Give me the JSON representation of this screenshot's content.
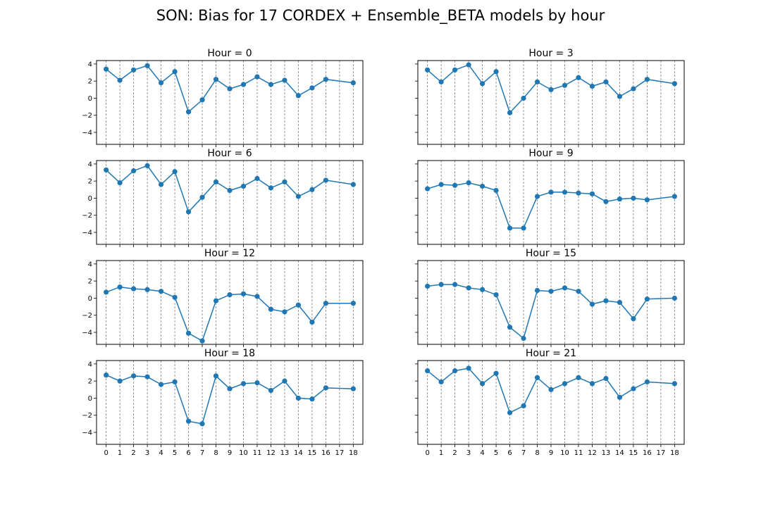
{
  "chart_data": {
    "type": "line",
    "suptitle": "SON: Bias for 17 CORDEX + Ensemble_BETA models by hour",
    "x": [
      0,
      1,
      2,
      3,
      4,
      5,
      6,
      7,
      8,
      9,
      10,
      11,
      12,
      13,
      14,
      15,
      16,
      18
    ],
    "xticks": [
      0,
      1,
      2,
      3,
      4,
      5,
      6,
      7,
      8,
      9,
      10,
      11,
      12,
      13,
      14,
      15,
      16,
      17,
      18
    ],
    "yticks": [
      -4,
      -2,
      0,
      2,
      4
    ],
    "ylim": [
      -5.4,
      4.4
    ],
    "xlim": [
      -0.7,
      18.7
    ],
    "grid": "vertical dashed lines at each x tick",
    "line_color": "#1f77b4",
    "marker": "circle",
    "panels": [
      {
        "title": "Hour = 0",
        "values": [
          3.4,
          2.1,
          3.3,
          3.8,
          1.8,
          3.1,
          -1.6,
          -0.2,
          2.2,
          1.1,
          1.6,
          2.5,
          1.6,
          2.1,
          0.3,
          1.2,
          2.2,
          1.8
        ]
      },
      {
        "title": "Hour = 3",
        "values": [
          3.3,
          1.9,
          3.3,
          3.9,
          1.7,
          3.1,
          -1.7,
          0.0,
          1.9,
          1.0,
          1.5,
          2.4,
          1.4,
          1.9,
          0.2,
          1.1,
          2.2,
          1.7
        ]
      },
      {
        "title": "Hour = 6",
        "values": [
          3.3,
          1.8,
          3.2,
          3.8,
          1.6,
          3.1,
          -1.6,
          0.1,
          1.9,
          0.9,
          1.4,
          2.3,
          1.2,
          1.9,
          0.2,
          1.0,
          2.1,
          1.6
        ]
      },
      {
        "title": "Hour = 9",
        "values": [
          1.1,
          1.6,
          1.5,
          1.8,
          1.4,
          0.9,
          -3.5,
          -3.5,
          0.2,
          0.7,
          0.7,
          0.6,
          0.5,
          -0.4,
          -0.1,
          0.0,
          -0.2,
          0.2
        ]
      },
      {
        "title": "Hour = 12",
        "values": [
          0.7,
          1.3,
          1.1,
          1.0,
          0.8,
          0.1,
          -4.1,
          -5.0,
          -0.3,
          0.4,
          0.5,
          0.2,
          -1.3,
          -1.6,
          -0.8,
          -2.8,
          -0.6,
          -0.6
        ]
      },
      {
        "title": "Hour = 15",
        "values": [
          1.4,
          1.6,
          1.6,
          1.2,
          1.0,
          0.4,
          -3.4,
          -4.7,
          0.9,
          0.8,
          1.2,
          0.8,
          -0.7,
          -0.3,
          -0.5,
          -2.4,
          -0.1,
          0.0
        ]
      },
      {
        "title": "Hour = 18",
        "values": [
          2.7,
          2.0,
          2.6,
          2.5,
          1.6,
          1.9,
          -2.7,
          -3.0,
          2.6,
          1.1,
          1.7,
          1.8,
          0.9,
          2.0,
          0.0,
          -0.1,
          1.2,
          1.1
        ]
      },
      {
        "title": "Hour = 21",
        "values": [
          3.2,
          1.9,
          3.2,
          3.5,
          1.7,
          2.9,
          -1.7,
          -0.9,
          2.4,
          1.0,
          1.7,
          2.4,
          1.7,
          2.3,
          0.1,
          1.1,
          1.9,
          1.7
        ]
      }
    ]
  }
}
